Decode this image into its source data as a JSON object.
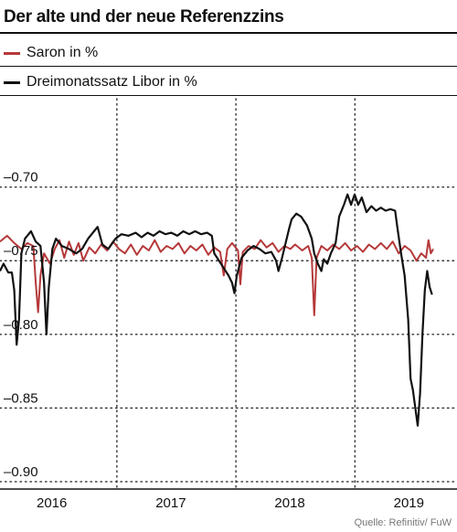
{
  "title": "Der alte und der neue Referenzzins",
  "source": "Quelle: Refinitiv/ FuW",
  "colors": {
    "saron": "#b5393a",
    "libor": "#111111",
    "grid": "#333333"
  },
  "chart_data": {
    "type": "line",
    "title": "Der alte und der neue Referenzzins",
    "xlabel": "",
    "ylabel": "",
    "xlim": [
      2015.58,
      2019.42
    ],
    "ylim": [
      -0.905,
      -0.64
    ],
    "y_ticks": [
      -0.7,
      -0.75,
      -0.8,
      -0.85,
      -0.9
    ],
    "y_tick_labels": [
      "–0.70",
      "–0.75",
      "–0.80",
      "–0.85",
      "–0.90"
    ],
    "x_ticks": [
      2016,
      2017,
      2018,
      2019
    ],
    "x_tick_labels": [
      "2016",
      "2017",
      "2018",
      "2019"
    ],
    "vertical_gridlines_at": [
      2016,
      2017,
      2018,
      2019
    ],
    "grid": "dotted",
    "legend_position": "top-left",
    "series": [
      {
        "name": "Saron in %",
        "color": "#b5393a",
        "points": [
          [
            2015.58,
            -0.737
          ],
          [
            2015.64,
            -0.733
          ],
          [
            2015.7,
            -0.738
          ],
          [
            2015.76,
            -0.742
          ],
          [
            2015.81,
            -0.738
          ],
          [
            2015.86,
            -0.74
          ],
          [
            2015.88,
            -0.765
          ],
          [
            2015.9,
            -0.785
          ],
          [
            2015.92,
            -0.76
          ],
          [
            2015.95,
            -0.745
          ],
          [
            2016.0,
            -0.752
          ],
          [
            2016.04,
            -0.742
          ],
          [
            2016.08,
            -0.736
          ],
          [
            2016.12,
            -0.748
          ],
          [
            2016.16,
            -0.737
          ],
          [
            2016.2,
            -0.746
          ],
          [
            2016.24,
            -0.738
          ],
          [
            2016.28,
            -0.75
          ],
          [
            2016.33,
            -0.741
          ],
          [
            2016.38,
            -0.745
          ],
          [
            2016.43,
            -0.739
          ],
          [
            2016.48,
            -0.743
          ],
          [
            2016.53,
            -0.737
          ],
          [
            2016.58,
            -0.742
          ],
          [
            2016.63,
            -0.745
          ],
          [
            2016.68,
            -0.739
          ],
          [
            2016.73,
            -0.746
          ],
          [
            2016.78,
            -0.74
          ],
          [
            2016.83,
            -0.743
          ],
          [
            2016.88,
            -0.736
          ],
          [
            2016.93,
            -0.744
          ],
          [
            2016.98,
            -0.74
          ],
          [
            2017.03,
            -0.742
          ],
          [
            2017.08,
            -0.738
          ],
          [
            2017.13,
            -0.745
          ],
          [
            2017.18,
            -0.74
          ],
          [
            2017.23,
            -0.743
          ],
          [
            2017.28,
            -0.739
          ],
          [
            2017.33,
            -0.746
          ],
          [
            2017.38,
            -0.741
          ],
          [
            2017.43,
            -0.744
          ],
          [
            2017.46,
            -0.76
          ],
          [
            2017.49,
            -0.742
          ],
          [
            2017.53,
            -0.738
          ],
          [
            2017.58,
            -0.743
          ],
          [
            2017.6,
            -0.766
          ],
          [
            2017.62,
            -0.744
          ],
          [
            2017.67,
            -0.74
          ],
          [
            2017.72,
            -0.742
          ],
          [
            2017.77,
            -0.736
          ],
          [
            2017.82,
            -0.741
          ],
          [
            2017.87,
            -0.738
          ],
          [
            2017.92,
            -0.744
          ],
          [
            2017.97,
            -0.74
          ],
          [
            2018.02,
            -0.742
          ],
          [
            2018.06,
            -0.739
          ],
          [
            2018.12,
            -0.743
          ],
          [
            2018.17,
            -0.74
          ],
          [
            2018.2,
            -0.748
          ],
          [
            2018.22,
            -0.787
          ],
          [
            2018.24,
            -0.748
          ],
          [
            2018.28,
            -0.74
          ],
          [
            2018.33,
            -0.743
          ],
          [
            2018.38,
            -0.739
          ],
          [
            2018.43,
            -0.742
          ],
          [
            2018.48,
            -0.738
          ],
          [
            2018.53,
            -0.743
          ],
          [
            2018.58,
            -0.74
          ],
          [
            2018.63,
            -0.744
          ],
          [
            2018.68,
            -0.739
          ],
          [
            2018.73,
            -0.742
          ],
          [
            2018.78,
            -0.738
          ],
          [
            2018.83,
            -0.742
          ],
          [
            2018.88,
            -0.737
          ],
          [
            2018.93,
            -0.745
          ],
          [
            2018.98,
            -0.74
          ],
          [
            2019.03,
            -0.743
          ],
          [
            2019.08,
            -0.75
          ],
          [
            2019.12,
            -0.745
          ],
          [
            2019.16,
            -0.748
          ],
          [
            2019.18,
            -0.736
          ],
          [
            2019.2,
            -0.745
          ],
          [
            2019.22,
            -0.742
          ]
        ]
      },
      {
        "name": "Dreimonatssatz Libor in %",
        "color": "#111111",
        "points": [
          [
            2015.58,
            -0.757
          ],
          [
            2015.61,
            -0.752
          ],
          [
            2015.65,
            -0.758
          ],
          [
            2015.68,
            -0.758
          ],
          [
            2015.7,
            -0.77
          ],
          [
            2015.72,
            -0.807
          ],
          [
            2015.74,
            -0.79
          ],
          [
            2015.76,
            -0.745
          ],
          [
            2015.79,
            -0.735
          ],
          [
            2015.84,
            -0.73
          ],
          [
            2015.88,
            -0.737
          ],
          [
            2015.92,
            -0.74
          ],
          [
            2015.95,
            -0.765
          ],
          [
            2015.97,
            -0.8
          ],
          [
            2015.99,
            -0.768
          ],
          [
            2016.02,
            -0.742
          ],
          [
            2016.05,
            -0.735
          ],
          [
            2016.1,
            -0.74
          ],
          [
            2016.16,
            -0.742
          ],
          [
            2016.22,
            -0.745
          ],
          [
            2016.27,
            -0.742
          ],
          [
            2016.32,
            -0.735
          ],
          [
            2016.37,
            -0.73
          ],
          [
            2016.4,
            -0.727
          ],
          [
            2016.44,
            -0.739
          ],
          [
            2016.49,
            -0.742
          ],
          [
            2016.55,
            -0.735
          ],
          [
            2016.6,
            -0.732
          ],
          [
            2016.66,
            -0.733
          ],
          [
            2016.72,
            -0.731
          ],
          [
            2016.77,
            -0.734
          ],
          [
            2016.82,
            -0.731
          ],
          [
            2016.87,
            -0.733
          ],
          [
            2016.92,
            -0.73
          ],
          [
            2016.97,
            -0.732
          ],
          [
            2017.02,
            -0.731
          ],
          [
            2017.07,
            -0.733
          ],
          [
            2017.12,
            -0.73
          ],
          [
            2017.17,
            -0.732
          ],
          [
            2017.22,
            -0.73
          ],
          [
            2017.27,
            -0.732
          ],
          [
            2017.32,
            -0.731
          ],
          [
            2017.36,
            -0.733
          ],
          [
            2017.38,
            -0.745
          ],
          [
            2017.42,
            -0.75
          ],
          [
            2017.46,
            -0.755
          ],
          [
            2017.5,
            -0.76
          ],
          [
            2017.53,
            -0.765
          ],
          [
            2017.55,
            -0.772
          ],
          [
            2017.57,
            -0.76
          ],
          [
            2017.61,
            -0.748
          ],
          [
            2017.66,
            -0.743
          ],
          [
            2017.71,
            -0.74
          ],
          [
            2017.76,
            -0.742
          ],
          [
            2017.81,
            -0.745
          ],
          [
            2017.86,
            -0.744
          ],
          [
            2017.9,
            -0.75
          ],
          [
            2017.92,
            -0.757
          ],
          [
            2017.95,
            -0.748
          ],
          [
            2017.98,
            -0.738
          ],
          [
            2018.01,
            -0.728
          ],
          [
            2018.03,
            -0.722
          ],
          [
            2018.07,
            -0.718
          ],
          [
            2018.11,
            -0.72
          ],
          [
            2018.16,
            -0.726
          ],
          [
            2018.2,
            -0.735
          ],
          [
            2018.22,
            -0.745
          ],
          [
            2018.25,
            -0.752
          ],
          [
            2018.28,
            -0.757
          ],
          [
            2018.3,
            -0.749
          ],
          [
            2018.33,
            -0.752
          ],
          [
            2018.36,
            -0.745
          ],
          [
            2018.4,
            -0.738
          ],
          [
            2018.43,
            -0.72
          ],
          [
            2018.47,
            -0.712
          ],
          [
            2018.5,
            -0.705
          ],
          [
            2018.53,
            -0.712
          ],
          [
            2018.56,
            -0.705
          ],
          [
            2018.59,
            -0.712
          ],
          [
            2018.62,
            -0.707
          ],
          [
            2018.66,
            -0.717
          ],
          [
            2018.7,
            -0.713
          ],
          [
            2018.74,
            -0.716
          ],
          [
            2018.78,
            -0.714
          ],
          [
            2018.82,
            -0.716
          ],
          [
            2018.86,
            -0.715
          ],
          [
            2018.9,
            -0.716
          ],
          [
            2018.92,
            -0.728
          ],
          [
            2018.95,
            -0.745
          ],
          [
            2018.98,
            -0.76
          ],
          [
            2019.01,
            -0.79
          ],
          [
            2019.03,
            -0.83
          ],
          [
            2019.05,
            -0.838
          ],
          [
            2019.07,
            -0.85
          ],
          [
            2019.09,
            -0.862
          ],
          [
            2019.11,
            -0.84
          ],
          [
            2019.13,
            -0.8
          ],
          [
            2019.15,
            -0.77
          ],
          [
            2019.17,
            -0.757
          ],
          [
            2019.19,
            -0.768
          ],
          [
            2019.21,
            -0.773
          ]
        ]
      }
    ]
  }
}
